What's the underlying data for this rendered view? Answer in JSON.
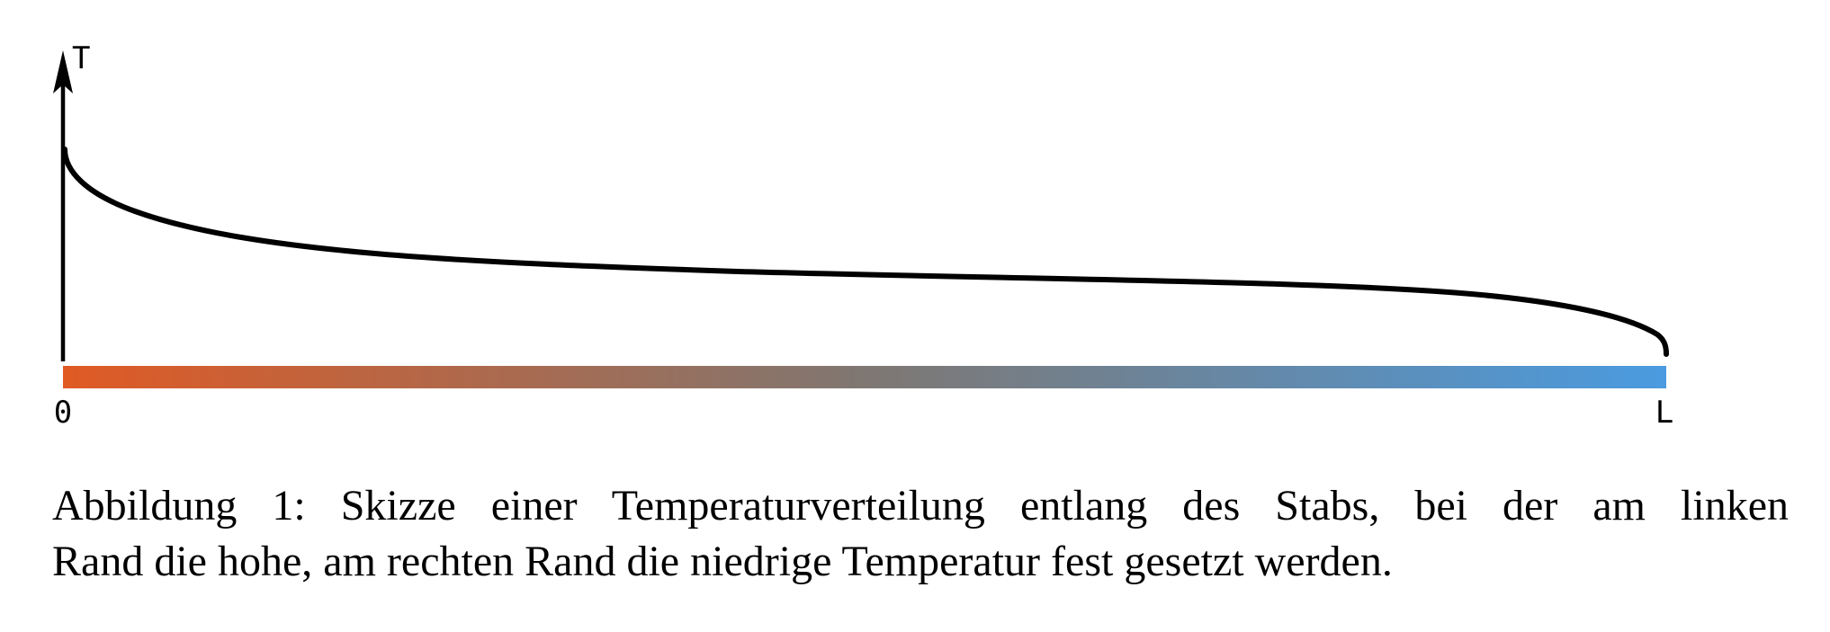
{
  "figure": {
    "y_axis_label": "T",
    "x_start_label": "0",
    "x_end_label": "L",
    "rod_gradient": {
      "hot_color": "#E05A24",
      "mid_color": "#7F7772",
      "cold_color": "#4A9BE0"
    },
    "curve_color": "#000000"
  },
  "caption": {
    "line1": "Abbildung 1: Skizze einer Temperaturverteilung entlang des Stabs, bei der am linken",
    "line2": "Rand die hohe, am rechten Rand die niedrige Temperatur fest gesetzt werden."
  }
}
